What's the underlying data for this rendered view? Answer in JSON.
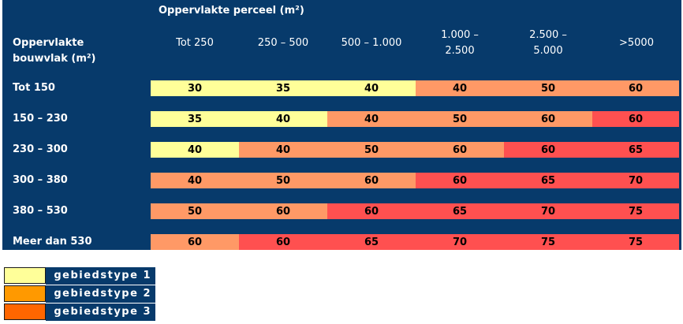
{
  "matrix": {
    "column_axis_title": "Oppervlakte perceel (m²)",
    "row_axis_title_line1": "Oppervlakte",
    "row_axis_title_line2": "bouwvlak (m²)",
    "columns": [
      {
        "line1": "Tot 250",
        "line2": ""
      },
      {
        "line1": "250 – 500",
        "line2": ""
      },
      {
        "line1": "500 – 1.000",
        "line2": ""
      },
      {
        "line1": "1.000 –",
        "line2": "2.500"
      },
      {
        "line1": "2.500 –",
        "line2": "5.000"
      },
      {
        "line1": ">5000",
        "line2": ""
      }
    ],
    "rows": [
      {
        "label": "Tot 150",
        "values": [
          "30",
          "35",
          "40",
          "40",
          "50",
          "60"
        ],
        "types": [
          1,
          1,
          1,
          2,
          2,
          2
        ]
      },
      {
        "label": "150 – 230",
        "values": [
          "35",
          "40",
          "40",
          "50",
          "60",
          "60"
        ],
        "types": [
          1,
          1,
          2,
          2,
          2,
          3
        ]
      },
      {
        "label": "230 – 300",
        "values": [
          "40",
          "40",
          "50",
          "60",
          "60",
          "65"
        ],
        "types": [
          1,
          2,
          2,
          2,
          3,
          3
        ]
      },
      {
        "label": "300 – 380",
        "values": [
          "40",
          "50",
          "60",
          "60",
          "65",
          "70"
        ],
        "types": [
          2,
          2,
          2,
          3,
          3,
          3
        ]
      },
      {
        "label": "380 – 530",
        "values": [
          "50",
          "60",
          "60",
          "65",
          "70",
          "75"
        ],
        "types": [
          2,
          2,
          3,
          3,
          3,
          3
        ]
      },
      {
        "label": "Meer dan 530",
        "values": [
          "60",
          "60",
          "65",
          "70",
          "75",
          "75"
        ],
        "types": [
          2,
          3,
          3,
          3,
          3,
          3
        ]
      }
    ],
    "cell_colors": {
      "1": "#ffff99",
      "2": "#ff9966",
      "3": "#ff5050"
    }
  },
  "legend": {
    "items": [
      {
        "label": "gebiedstype 1",
        "color": "#ffff99"
      },
      {
        "label": "gebiedstype 2",
        "color": "#ff9900"
      },
      {
        "label": "gebiedstype 3",
        "color": "#ff6600"
      }
    ]
  }
}
